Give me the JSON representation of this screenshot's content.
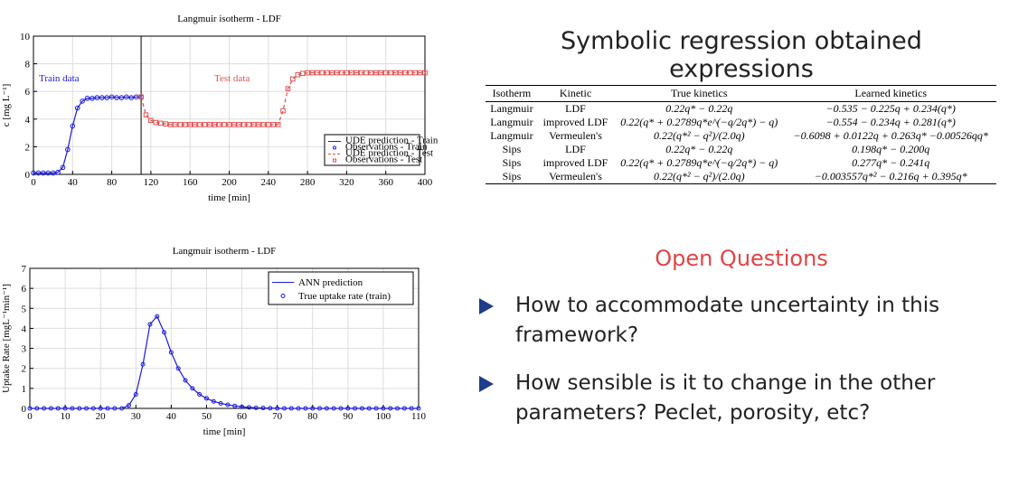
{
  "chart_data": [
    {
      "type": "line",
      "title": "Langmuir isotherm - LDF",
      "x_label": "time [min]",
      "y_label": "c [mg L⁻¹]",
      "xlim": [
        0,
        400
      ],
      "xticks": [
        0,
        40,
        80,
        120,
        160,
        200,
        240,
        280,
        320,
        360,
        400
      ],
      "ylim": [
        0,
        10
      ],
      "yticks": [
        0,
        2,
        4,
        6,
        8,
        10
      ],
      "grid": true,
      "legend": "lower right",
      "annotations": [
        "Train data",
        "Test data"
      ],
      "vlines": [
        110
      ],
      "series": [
        {
          "name": "UDE prediction - Train",
          "color": "#1a1adb",
          "style": "solid",
          "x": [
            0,
            5,
            10,
            15,
            20,
            25,
            30,
            35,
            40,
            45,
            50,
            55,
            60,
            65,
            70,
            75,
            80,
            85,
            90,
            95,
            100,
            105,
            110
          ],
          "values": [
            0.1,
            0.1,
            0.1,
            0.1,
            0.1,
            0.15,
            0.5,
            1.8,
            3.5,
            4.8,
            5.3,
            5.5,
            5.5,
            5.55,
            5.55,
            5.55,
            5.6,
            5.55,
            5.55,
            5.6,
            5.55,
            5.6,
            5.6
          ]
        },
        {
          "name": "Observations - Train",
          "color": "#1a1adb",
          "marker": "circle",
          "x": [
            0,
            5,
            10,
            15,
            20,
            25,
            30,
            35,
            40,
            45,
            50,
            55,
            60,
            65,
            70,
            75,
            80,
            85,
            90,
            95,
            100,
            105,
            110
          ],
          "values": [
            0.1,
            0.1,
            0.1,
            0.1,
            0.1,
            0.15,
            0.5,
            1.8,
            3.5,
            4.8,
            5.3,
            5.5,
            5.5,
            5.55,
            5.55,
            5.55,
            5.6,
            5.55,
            5.55,
            5.6,
            5.55,
            5.6,
            5.6
          ]
        },
        {
          "name": "UDE prediction - Test",
          "color": "#e05050",
          "style": "dashed",
          "x": [
            110,
            115,
            120,
            125,
            130,
            135,
            140,
            145,
            150,
            155,
            160,
            165,
            170,
            175,
            180,
            185,
            190,
            195,
            200,
            205,
            210,
            215,
            220,
            225,
            230,
            235,
            240,
            245,
            250,
            255,
            260,
            265,
            270,
            275,
            280,
            285,
            290,
            295,
            300,
            305,
            310,
            315,
            320,
            325,
            330,
            335,
            340,
            345,
            350,
            355,
            360,
            365,
            370,
            375,
            380,
            385,
            390,
            395,
            400
          ],
          "values": [
            5.6,
            4.3,
            3.9,
            3.75,
            3.7,
            3.65,
            3.6,
            3.6,
            3.6,
            3.6,
            3.6,
            3.6,
            3.6,
            3.6,
            3.6,
            3.6,
            3.6,
            3.6,
            3.6,
            3.6,
            3.6,
            3.6,
            3.6,
            3.6,
            3.6,
            3.6,
            3.6,
            3.6,
            3.6,
            4.6,
            6.2,
            6.9,
            7.2,
            7.3,
            7.35,
            7.35,
            7.35,
            7.35,
            7.35,
            7.35,
            7.35,
            7.35,
            7.35,
            7.35,
            7.35,
            7.35,
            7.35,
            7.35,
            7.35,
            7.35,
            7.35,
            7.35,
            7.35,
            7.35,
            7.35,
            7.35,
            7.35,
            7.35,
            7.35
          ]
        },
        {
          "name": "Observations - Test",
          "color": "#e05050",
          "marker": "square",
          "x": [
            110,
            115,
            120,
            125,
            130,
            135,
            140,
            145,
            150,
            155,
            160,
            165,
            170,
            175,
            180,
            185,
            190,
            195,
            200,
            205,
            210,
            215,
            220,
            225,
            230,
            235,
            240,
            245,
            250,
            255,
            260,
            265,
            270,
            275,
            280,
            285,
            290,
            295,
            300,
            305,
            310,
            315,
            320,
            325,
            330,
            335,
            340,
            345,
            350,
            355,
            360,
            365,
            370,
            375,
            380,
            385,
            390,
            395,
            400
          ],
          "values": [
            5.6,
            4.3,
            3.9,
            3.75,
            3.7,
            3.65,
            3.6,
            3.6,
            3.6,
            3.6,
            3.6,
            3.6,
            3.6,
            3.6,
            3.6,
            3.6,
            3.6,
            3.6,
            3.6,
            3.6,
            3.6,
            3.6,
            3.6,
            3.6,
            3.6,
            3.6,
            3.6,
            3.6,
            3.6,
            4.6,
            6.2,
            6.9,
            7.2,
            7.3,
            7.35,
            7.35,
            7.35,
            7.35,
            7.35,
            7.35,
            7.35,
            7.35,
            7.35,
            7.35,
            7.35,
            7.35,
            7.35,
            7.35,
            7.35,
            7.35,
            7.35,
            7.35,
            7.35,
            7.35,
            7.35,
            7.35,
            7.35,
            7.35,
            7.35
          ]
        }
      ]
    },
    {
      "type": "line",
      "title": "Langmuir isotherm - LDF",
      "x_label": "time [min]",
      "y_label": "Uptake Rate [mgL⁻¹min⁻¹]",
      "xlim": [
        0,
        110
      ],
      "xticks": [
        0,
        10,
        20,
        30,
        40,
        50,
        60,
        70,
        80,
        90,
        100,
        110
      ],
      "ylim": [
        0,
        7
      ],
      "yticks": [
        0,
        1,
        2,
        3,
        4,
        5,
        6,
        7
      ],
      "grid": true,
      "legend": "upper right",
      "series": [
        {
          "name": "ANN prediction",
          "color": "#1a1adb",
          "style": "solid",
          "x": [
            0,
            2,
            4,
            6,
            8,
            10,
            12,
            14,
            16,
            18,
            20,
            22,
            24,
            26,
            28,
            30,
            32,
            34,
            36,
            38,
            40,
            42,
            44,
            46,
            48,
            50,
            52,
            54,
            56,
            58,
            60,
            62,
            64,
            66,
            68,
            70,
            72,
            74,
            76,
            78,
            80,
            82,
            84,
            86,
            88,
            90,
            92,
            94,
            96,
            98,
            100,
            102,
            104,
            106,
            108,
            110
          ],
          "values": [
            0,
            0,
            0,
            0,
            0,
            0,
            0,
            0,
            0,
            0,
            0,
            0,
            0,
            0,
            0.15,
            0.7,
            2.2,
            4.2,
            4.6,
            3.8,
            2.8,
            2.0,
            1.4,
            1.0,
            0.7,
            0.5,
            0.35,
            0.25,
            0.18,
            0.12,
            0.08,
            0.05,
            0.03,
            0.02,
            0.01,
            0,
            0,
            0,
            0,
            0,
            0,
            0,
            0,
            0,
            0,
            0,
            0,
            0,
            0,
            0,
            0,
            0,
            0,
            0,
            0,
            0
          ]
        },
        {
          "name": "True uptake rate (train)",
          "color": "#1a1adb",
          "marker": "circle",
          "x": [
            0,
            2,
            4,
            6,
            8,
            10,
            12,
            14,
            16,
            18,
            20,
            22,
            24,
            26,
            28,
            30,
            32,
            34,
            36,
            38,
            40,
            42,
            44,
            46,
            48,
            50,
            52,
            54,
            56,
            58,
            60,
            62,
            64,
            66,
            68,
            70,
            72,
            74,
            76,
            78,
            80,
            82,
            84,
            86,
            88,
            90,
            92,
            94,
            96,
            98,
            100,
            102,
            104,
            106,
            108,
            110
          ],
          "values": [
            0,
            0,
            0,
            0,
            0,
            0,
            0,
            0,
            0,
            0,
            0,
            0,
            0,
            0,
            0.15,
            0.7,
            2.2,
            4.2,
            4.6,
            3.8,
            2.8,
            2.0,
            1.4,
            1.0,
            0.7,
            0.5,
            0.35,
            0.25,
            0.18,
            0.12,
            0.08,
            0.05,
            0.03,
            0.02,
            0.01,
            0,
            0,
            0,
            0,
            0,
            0,
            0,
            0,
            0,
            0,
            0,
            0,
            0,
            0,
            0,
            0,
            0,
            0,
            0,
            0,
            0
          ]
        }
      ]
    }
  ],
  "table": {
    "title": "Symbolic regression obtained expressions",
    "columns": [
      "Isotherm",
      "Kinetic",
      "True kinetics",
      "Learned kinetics"
    ],
    "rows": [
      [
        "Langmuir",
        "LDF",
        "0.22q* − 0.22q",
        "−0.535 − 0.225q + 0.234(q*)"
      ],
      [
        "Langmuir",
        "improved LDF",
        "0.22(q* + 0.2789q*e^(−q/2q*) − q)",
        "−0.554 − 0.234q + 0.281(q*)"
      ],
      [
        "Langmuir",
        "Vermeulen's",
        "0.22(q*² − q²)/(2.0q)",
        "−0.6098 + 0.0122q + 0.263q* −0.00526qq*"
      ],
      [
        "Sips",
        "LDF",
        "0.22q* − 0.22q",
        "0.198q* − 0.200q"
      ],
      [
        "Sips",
        "improved LDF",
        "0.22(q* + 0.2789q*e^(−q/2q*) − q)",
        "0.277q* − 0.241q"
      ],
      [
        "Sips",
        "Vermeulen's",
        "0.22(q*² − q²)/(2.0q)",
        "−0.003557q*² − 0.216q + 0.395q*"
      ]
    ]
  },
  "open_questions": {
    "title": "Open Questions",
    "items": [
      "How to accommodate uncertainty in this framework?",
      "How sensible is it to change in the other parameters? Peclet, porosity, etc?"
    ]
  }
}
